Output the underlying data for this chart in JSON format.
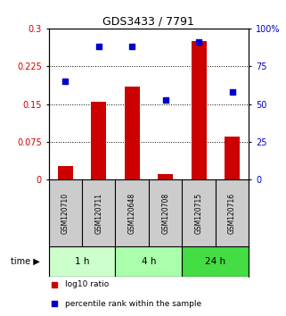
{
  "title": "GDS3433 / 7791",
  "samples": [
    "GSM120710",
    "GSM120711",
    "GSM120648",
    "GSM120708",
    "GSM120715",
    "GSM120716"
  ],
  "log10_ratio": [
    0.028,
    0.155,
    0.185,
    0.012,
    0.275,
    0.085
  ],
  "percentile_rank": [
    65,
    88,
    88,
    53,
    91,
    58
  ],
  "groups": [
    {
      "label": "1 h",
      "samples": [
        0,
        1
      ],
      "color": "#ccffcc"
    },
    {
      "label": "4 h",
      "samples": [
        2,
        3
      ],
      "color": "#aaffaa"
    },
    {
      "label": "24 h",
      "samples": [
        4,
        5
      ],
      "color": "#44dd44"
    }
  ],
  "bar_color": "#cc0000",
  "dot_color": "#0000cc",
  "left_yticks": [
    0,
    0.075,
    0.15,
    0.225,
    0.3
  ],
  "right_ytick_labels": [
    "0",
    "25",
    "50",
    "75",
    "100%"
  ],
  "ylim_left": [
    0,
    0.3
  ],
  "ylim_right": [
    0,
    100
  ],
  "background_color": "#ffffff",
  "sample_box_color": "#cccccc",
  "legend_entries": [
    "log10 ratio",
    "percentile rank within the sample"
  ]
}
